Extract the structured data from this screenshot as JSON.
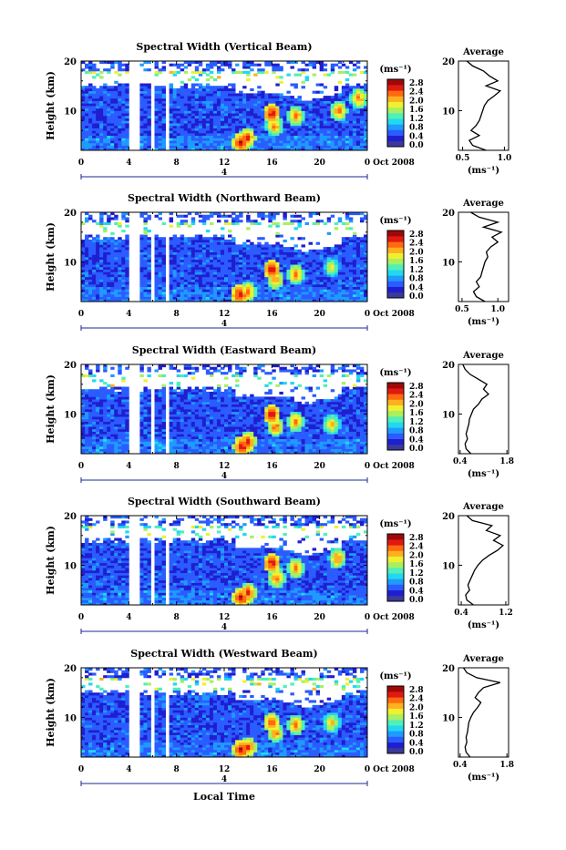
{
  "figure": {
    "xlabel": "Local Time",
    "ylabel": "Height (km)",
    "date_label": "Oct 2008",
    "day_marker": "4",
    "unit_label": "(ms⁻¹)",
    "average_title": "Average",
    "average_xlabel": "(ms⁻¹)"
  },
  "colorbar": {
    "ticks": [
      "0.0",
      "0.4",
      "0.8",
      "1.2",
      "1.6",
      "2.0",
      "2.4",
      "2.8"
    ],
    "colors": [
      "#3a3a9a",
      "#1f1fd0",
      "#2a5cff",
      "#1f9bff",
      "#22d8f0",
      "#50f0b8",
      "#a8f060",
      "#f0f030",
      "#ffb020",
      "#ff6a10",
      "#e01a10",
      "#a00808"
    ]
  },
  "chart_data": [
    {
      "type": "heatmap",
      "title": "Spectral Width (Vertical Beam)",
      "x_ticks": [
        "0",
        "4",
        "8",
        "12",
        "16",
        "20",
        "0"
      ],
      "x_range": [
        0,
        24
      ],
      "y_ticks": [
        "10",
        "20"
      ],
      "y_range": [
        2,
        20
      ],
      "data_gaps_hours": [
        [
          4.0,
          4.9
        ],
        [
          5.8,
          6.0
        ],
        [
          7.0,
          7.3
        ]
      ],
      "high_width_cells": [
        {
          "t": 13.4,
          "h": 3.5,
          "v": 2.8
        },
        {
          "t": 13.9,
          "h": 4.5,
          "v": 2.6
        },
        {
          "t": 16.0,
          "h": 9.5,
          "v": 2.8
        },
        {
          "t": 16.2,
          "h": 7.0,
          "v": 2.4
        },
        {
          "t": 18.0,
          "h": 9.0,
          "v": 2.4
        },
        {
          "t": 21.6,
          "h": 10.0,
          "v": 2.4
        },
        {
          "t": 23.3,
          "h": 12.5,
          "v": 2.4
        }
      ],
      "average_profile": {
        "x_ticks": [
          "0.5",
          "1.0"
        ],
        "x_range": [
          0.45,
          1.05
        ],
        "heights_km": [
          2,
          3,
          4,
          5,
          6,
          7,
          8,
          9,
          10,
          11,
          12,
          13,
          14,
          15,
          16,
          17,
          18,
          19,
          20
        ],
        "values": [
          0.78,
          0.62,
          0.58,
          0.7,
          0.6,
          0.66,
          0.7,
          0.72,
          0.74,
          0.76,
          0.8,
          0.88,
          0.95,
          0.78,
          0.92,
          0.82,
          0.75,
          0.62,
          0.55
        ]
      }
    },
    {
      "type": "heatmap",
      "title": "Spectral Width (Northward Beam)",
      "x_ticks": [
        "0",
        "4",
        "8",
        "12",
        "16",
        "20",
        "0"
      ],
      "x_range": [
        0,
        24
      ],
      "y_ticks": [
        "10",
        "20"
      ],
      "y_range": [
        2,
        20
      ],
      "data_gaps_hours": [
        [
          4.0,
          4.9
        ],
        [
          5.8,
          6.0
        ],
        [
          7.0,
          7.3
        ]
      ],
      "high_width_cells": [
        {
          "t": 13.3,
          "h": 3.5,
          "v": 2.8
        },
        {
          "t": 14.0,
          "h": 4.0,
          "v": 2.4
        },
        {
          "t": 16.0,
          "h": 8.5,
          "v": 2.8
        },
        {
          "t": 16.3,
          "h": 6.5,
          "v": 2.4
        },
        {
          "t": 18.0,
          "h": 7.5,
          "v": 2.4
        },
        {
          "t": 21.0,
          "h": 9.0,
          "v": 2.0
        }
      ],
      "average_profile": {
        "x_ticks": [
          "0.5",
          "1.0"
        ],
        "x_range": [
          0.45,
          1.15
        ],
        "heights_km": [
          2,
          3,
          4,
          5,
          6,
          7,
          8,
          9,
          10,
          11,
          12,
          13,
          14,
          15,
          16,
          17,
          18,
          19,
          20
        ],
        "values": [
          0.82,
          0.7,
          0.66,
          0.74,
          0.7,
          0.76,
          0.78,
          0.8,
          0.82,
          0.86,
          0.84,
          0.9,
          1.0,
          0.92,
          1.05,
          0.8,
          1.0,
          0.74,
          0.62
        ]
      }
    },
    {
      "type": "heatmap",
      "title": "Spectral Width (Eastward Beam)",
      "x_ticks": [
        "0",
        "4",
        "8",
        "12",
        "16",
        "20",
        "0"
      ],
      "x_range": [
        0,
        24
      ],
      "y_ticks": [
        "10",
        "20"
      ],
      "y_range": [
        2,
        20
      ],
      "data_gaps_hours": [
        [
          4.0,
          4.9
        ],
        [
          5.8,
          6.0
        ],
        [
          7.0,
          7.3
        ]
      ],
      "high_width_cells": [
        {
          "t": 13.5,
          "h": 3.5,
          "v": 2.8
        },
        {
          "t": 14.0,
          "h": 4.5,
          "v": 2.6
        },
        {
          "t": 16.0,
          "h": 10.0,
          "v": 2.8
        },
        {
          "t": 16.3,
          "h": 7.5,
          "v": 2.4
        },
        {
          "t": 18.0,
          "h": 8.5,
          "v": 2.4
        },
        {
          "t": 21.0,
          "h": 8.0,
          "v": 2.2
        }
      ],
      "average_profile": {
        "x_ticks": [
          "0.4",
          "1.8"
        ],
        "x_range": [
          0.35,
          1.85
        ],
        "heights_km": [
          2,
          3,
          4,
          5,
          6,
          7,
          8,
          9,
          10,
          11,
          12,
          13,
          14,
          15,
          16,
          17,
          18,
          19,
          20
        ],
        "values": [
          0.72,
          0.58,
          0.55,
          0.62,
          0.58,
          0.62,
          0.66,
          0.68,
          0.74,
          0.8,
          0.95,
          1.05,
          1.25,
          1.1,
          1.2,
          0.95,
          0.7,
          0.55,
          0.48
        ]
      }
    },
    {
      "type": "heatmap",
      "title": "Spectral Width (Southward Beam)",
      "x_ticks": [
        "0",
        "4",
        "8",
        "12",
        "16",
        "20",
        "0"
      ],
      "x_range": [
        0,
        24
      ],
      "y_ticks": [
        "10",
        "20"
      ],
      "y_range": [
        2,
        20
      ],
      "data_gaps_hours": [
        [
          4.0,
          4.9
        ],
        [
          5.8,
          6.0
        ],
        [
          7.0,
          7.3
        ]
      ],
      "high_width_cells": [
        {
          "t": 13.4,
          "h": 3.5,
          "v": 2.8
        },
        {
          "t": 14.0,
          "h": 4.5,
          "v": 2.6
        },
        {
          "t": 16.0,
          "h": 10.5,
          "v": 2.8
        },
        {
          "t": 16.4,
          "h": 7.5,
          "v": 2.4
        },
        {
          "t": 18.0,
          "h": 9.5,
          "v": 2.4
        },
        {
          "t": 21.5,
          "h": 11.5,
          "v": 2.4
        }
      ],
      "average_profile": {
        "x_ticks": [
          "0.4",
          "1.2"
        ],
        "x_range": [
          0.35,
          1.25
        ],
        "heights_km": [
          2,
          3,
          4,
          5,
          6,
          7,
          8,
          9,
          10,
          11,
          12,
          13,
          14,
          15,
          16,
          17,
          18,
          19,
          20
        ],
        "values": [
          0.62,
          0.5,
          0.48,
          0.55,
          0.52,
          0.56,
          0.6,
          0.64,
          0.7,
          0.78,
          0.9,
          1.05,
          1.15,
          0.98,
          1.1,
          0.85,
          0.95,
          0.6,
          0.5
        ]
      }
    },
    {
      "type": "heatmap",
      "title": "Spectral Width (Westward Beam)",
      "x_ticks": [
        "0",
        "4",
        "8",
        "12",
        "16",
        "20",
        "0"
      ],
      "x_range": [
        0,
        24
      ],
      "y_ticks": [
        "10",
        "20"
      ],
      "y_range": [
        2,
        20
      ],
      "data_gaps_hours": [
        [
          4.0,
          4.9
        ],
        [
          5.8,
          6.0
        ],
        [
          7.0,
          7.3
        ]
      ],
      "high_width_cells": [
        {
          "t": 13.4,
          "h": 3.5,
          "v": 2.8
        },
        {
          "t": 14.0,
          "h": 4.0,
          "v": 2.6
        },
        {
          "t": 16.0,
          "h": 9.0,
          "v": 2.6
        },
        {
          "t": 16.3,
          "h": 7.0,
          "v": 2.4
        },
        {
          "t": 18.0,
          "h": 8.5,
          "v": 2.4
        },
        {
          "t": 21.0,
          "h": 9.0,
          "v": 2.2
        }
      ],
      "average_profile": {
        "x_ticks": [
          "0.4",
          "1.8"
        ],
        "x_range": [
          0.35,
          1.85
        ],
        "heights_km": [
          2,
          3,
          4,
          5,
          6,
          7,
          8,
          9,
          10,
          11,
          12,
          13,
          14,
          15,
          16,
          17,
          18,
          19,
          20
        ],
        "values": [
          0.7,
          0.58,
          0.55,
          0.6,
          0.58,
          0.62,
          0.64,
          0.66,
          0.72,
          0.8,
          0.92,
          1.02,
          0.85,
          0.95,
          1.1,
          1.6,
          0.9,
          0.6,
          0.5
        ]
      }
    }
  ]
}
